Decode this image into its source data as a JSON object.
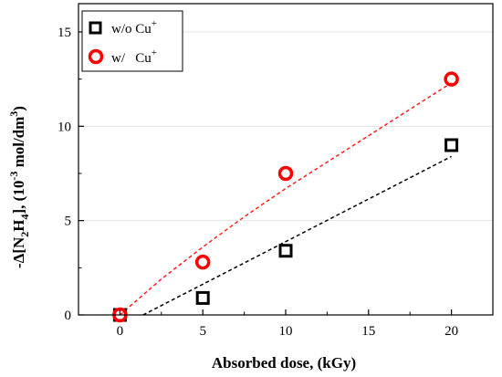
{
  "chart_data": {
    "type": "scatter",
    "xlabel": "Absorbed dose, (kGy)",
    "ylabel": {
      "prefix": "-Δ[N",
      "sub1": "2",
      "mid": "H",
      "sub2": "4",
      "suffix1": "], (10",
      "sup1": "-3",
      "suffix2": " mol/dm",
      "sup2": "3",
      "suffix3": ")"
    },
    "xlim": [
      -2.5,
      22.5
    ],
    "ylim": [
      0,
      16.5
    ],
    "xticks": [
      0,
      5,
      10,
      15,
      20
    ],
    "yticks": [
      0,
      5,
      10,
      15
    ],
    "grid": true,
    "legend_position": "top-left",
    "series": [
      {
        "name": "w/o Cu",
        "name_sup": "+",
        "marker": "square",
        "color": "#000000",
        "x": [
          0,
          5,
          10,
          20
        ],
        "y": [
          0.0,
          0.9,
          3.4,
          9.0
        ],
        "fit": {
          "type": "linear",
          "from": [
            1.4,
            0.0
          ],
          "to": [
            20.0,
            8.4
          ],
          "color": "#000000"
        }
      },
      {
        "name": "w/   Cu",
        "name_sup": "+",
        "marker": "circle",
        "color": "#ff0000",
        "x": [
          0,
          5,
          10,
          20
        ],
        "y": [
          0.0,
          2.8,
          7.5,
          12.5
        ],
        "fit": {
          "type": "curve",
          "points": [
            [
              0,
              0.0
            ],
            [
              2.5,
              1.9
            ],
            [
              5,
              3.6
            ],
            [
              7.5,
              5.2
            ],
            [
              10,
              6.7
            ],
            [
              12.5,
              8.1
            ],
            [
              15,
              9.5
            ],
            [
              17.5,
              10.9
            ],
            [
              20,
              12.3
            ]
          ],
          "color": "#ff2020"
        }
      }
    ]
  }
}
